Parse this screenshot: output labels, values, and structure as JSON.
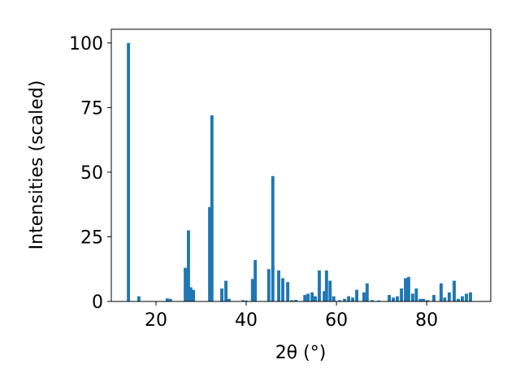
{
  "chart_data": {
    "type": "bar",
    "xlabel": "2θ (°)",
    "ylabel": "Intensities (scaled)",
    "color": "#1f77b4",
    "x": [
      13.9,
      16.2,
      22.5,
      23.2,
      26.5,
      27.2,
      27.7,
      28.3,
      31.9,
      32.4,
      34.6,
      35.5,
      36.2,
      39.3,
      40.0,
      41.4,
      42.0,
      45.0,
      45.9,
      47.2,
      48.1,
      49.2,
      50.1,
      51.0,
      53.0,
      53.7,
      54.6,
      55.3,
      56.2,
      57.3,
      57.8,
      58.6,
      59.4,
      60.7,
      61.8,
      62.7,
      63.6,
      64.5,
      66.1,
      66.8,
      67.9,
      69.4,
      71.7,
      72.6,
      73.5,
      74.4,
      75.3,
      76.0,
      76.9,
      77.7,
      78.6,
      79.3,
      80.2,
      81.6,
      83.2,
      84.0,
      85.0,
      86.1,
      87.0,
      87.9,
      88.8,
      89.7
    ],
    "values": [
      100,
      2,
      1.2,
      1,
      13,
      27.5,
      5.5,
      4.5,
      36.5,
      72,
      5,
      8,
      1,
      0.5,
      0.3,
      8.7,
      16,
      12.5,
      48.5,
      12,
      9,
      7.5,
      0.5,
      0.6,
      2.5,
      3,
      3.5,
      2,
      12,
      4,
      12,
      8,
      2,
      0.5,
      1,
      2,
      1.5,
      4.5,
      3.5,
      7,
      0.5,
      0.4,
      2.5,
      1.5,
      2,
      5,
      9,
      9.5,
      3,
      5,
      1,
      1,
      0.5,
      2.5,
      7,
      1.5,
      3.5,
      8,
      1,
      2,
      3,
      3.5
    ],
    "xlim": [
      10.1,
      94.2
    ],
    "ylim": [
      0,
      105.3
    ],
    "xticks": [
      20,
      40,
      60,
      80
    ],
    "yticks": [
      0,
      25,
      50,
      75,
      100
    ]
  }
}
